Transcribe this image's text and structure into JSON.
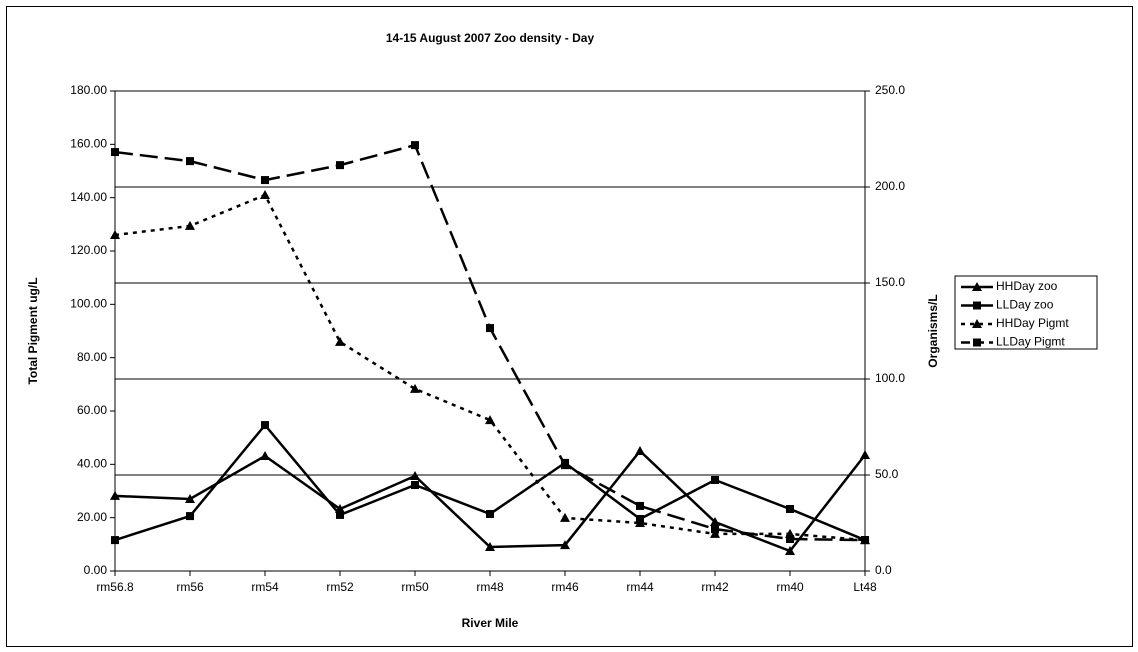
{
  "chart_data": {
    "type": "line",
    "title": "14-15 August 2007 Zoo density - Day",
    "x_label": "River Mile",
    "y_label": "Total Pigment ug/L",
    "y2_label": "Organisms/L",
    "categories": [
      "rm56.8",
      "rm56",
      "rm54",
      "rm52",
      "rm50",
      "rm48",
      "rm46",
      "rm44",
      "rm42",
      "rm40",
      "Lt48"
    ],
    "ylim": [
      0,
      180
    ],
    "yticks": [
      {
        "value": 0,
        "label": "0.00"
      },
      {
        "value": 20,
        "label": "20.00"
      },
      {
        "value": 40,
        "label": "40.00"
      },
      {
        "value": 60,
        "label": "60.00"
      },
      {
        "value": 80,
        "label": "80.00"
      },
      {
        "value": 100,
        "label": "100.00"
      },
      {
        "value": 120,
        "label": "120.00"
      },
      {
        "value": 140,
        "label": "140.00"
      },
      {
        "value": 160,
        "label": "160.00"
      },
      {
        "value": 180,
        "label": "180.00"
      }
    ],
    "y2lim": [
      0,
      250
    ],
    "y2ticks": [
      {
        "value": 0,
        "label": "0.0"
      },
      {
        "value": 50,
        "label": "50.0"
      },
      {
        "value": 100,
        "label": "100.0"
      },
      {
        "value": 150,
        "label": "150.0"
      },
      {
        "value": 200,
        "label": "200.0"
      },
      {
        "value": 250,
        "label": "250.0"
      }
    ],
    "grid": true,
    "legend": "right",
    "series": [
      {
        "name": "HHDay zoo",
        "color": "#000000",
        "style": "solid",
        "marker": "triangle",
        "axis": "y2",
        "values": [
          39.1,
          37.5,
          59.9,
          32.3,
          49.5,
          12.5,
          13.5,
          62.5,
          25.5,
          10.4,
          60.4
        ]
      },
      {
        "name": "LLDay zoo",
        "color": "#000000",
        "style": "solid",
        "marker": "square",
        "axis": "y2",
        "values": [
          16.1,
          28.6,
          76.0,
          29.2,
          44.8,
          29.7,
          56.3,
          27.1,
          47.4,
          32.3,
          16.1
        ]
      },
      {
        "name": "HHDay Pigmt",
        "color": "#000000",
        "style": "dotted",
        "marker": "triangle",
        "values": [
          126,
          129.4,
          141,
          85.9,
          68.3,
          56.6,
          19.9,
          18,
          13.9,
          13.9,
          11.6
        ]
      },
      {
        "name": "LLDay Pigmt",
        "color": "#000000",
        "style": "dashed",
        "marker": "square",
        "values": [
          157.1,
          153.7,
          146.6,
          152.2,
          159.7,
          91.1,
          39.7,
          24.4,
          15.7,
          12,
          11.6
        ]
      }
    ]
  }
}
